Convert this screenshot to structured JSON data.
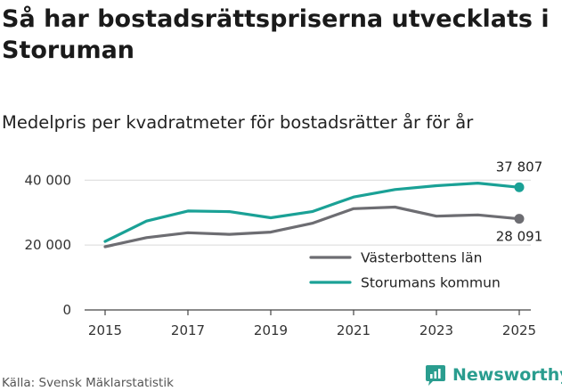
{
  "title": "Så har bostadsrättspriserna utvecklats i Storuman",
  "subtitle": "Medelpris per kvadratmeter för bostadsrätter år för år",
  "source": "Källa: Svensk Mäklarstatistik",
  "brand": "Newsworthy",
  "colors": {
    "gray": "#6d6d72",
    "teal": "#1aa196",
    "grid": "#d9d9d9",
    "brand": "#2a9d8f"
  },
  "chart_data": {
    "type": "line",
    "title": "Så har bostadsrättspriserna utvecklats i Storuman",
    "subtitle": "Medelpris per kvadratmeter för bostadsrätter år för år",
    "xlabel": "",
    "ylabel": "",
    "x": [
      2015,
      2016,
      2017,
      2018,
      2019,
      2020,
      2021,
      2022,
      2023,
      2024,
      2025
    ],
    "xticks": [
      2015,
      2017,
      2019,
      2021,
      2023,
      2025
    ],
    "xtick_labels": [
      "2015",
      "2017",
      "2019",
      "2021",
      "2023",
      "2025"
    ],
    "yticks": [
      0,
      20000,
      40000
    ],
    "ytick_labels": [
      "0",
      "20 000",
      "40 000"
    ],
    "ylim": [
      0,
      42000
    ],
    "xlim": [
      2015,
      2025
    ],
    "grid": true,
    "legend_position": "bottom-right",
    "series": [
      {
        "name": "Västerbottens län",
        "color": "#6d6d72",
        "values": [
          19500,
          22300,
          23800,
          23300,
          24000,
          26700,
          31200,
          31700,
          28900,
          29300,
          28091
        ],
        "end_label": "28 091"
      },
      {
        "name": "Storumans kommun",
        "color": "#1aa196",
        "values": [
          21100,
          27400,
          30500,
          30300,
          28400,
          30300,
          34800,
          37100,
          38300,
          39100,
          37807
        ],
        "end_label": "37 807"
      }
    ]
  }
}
